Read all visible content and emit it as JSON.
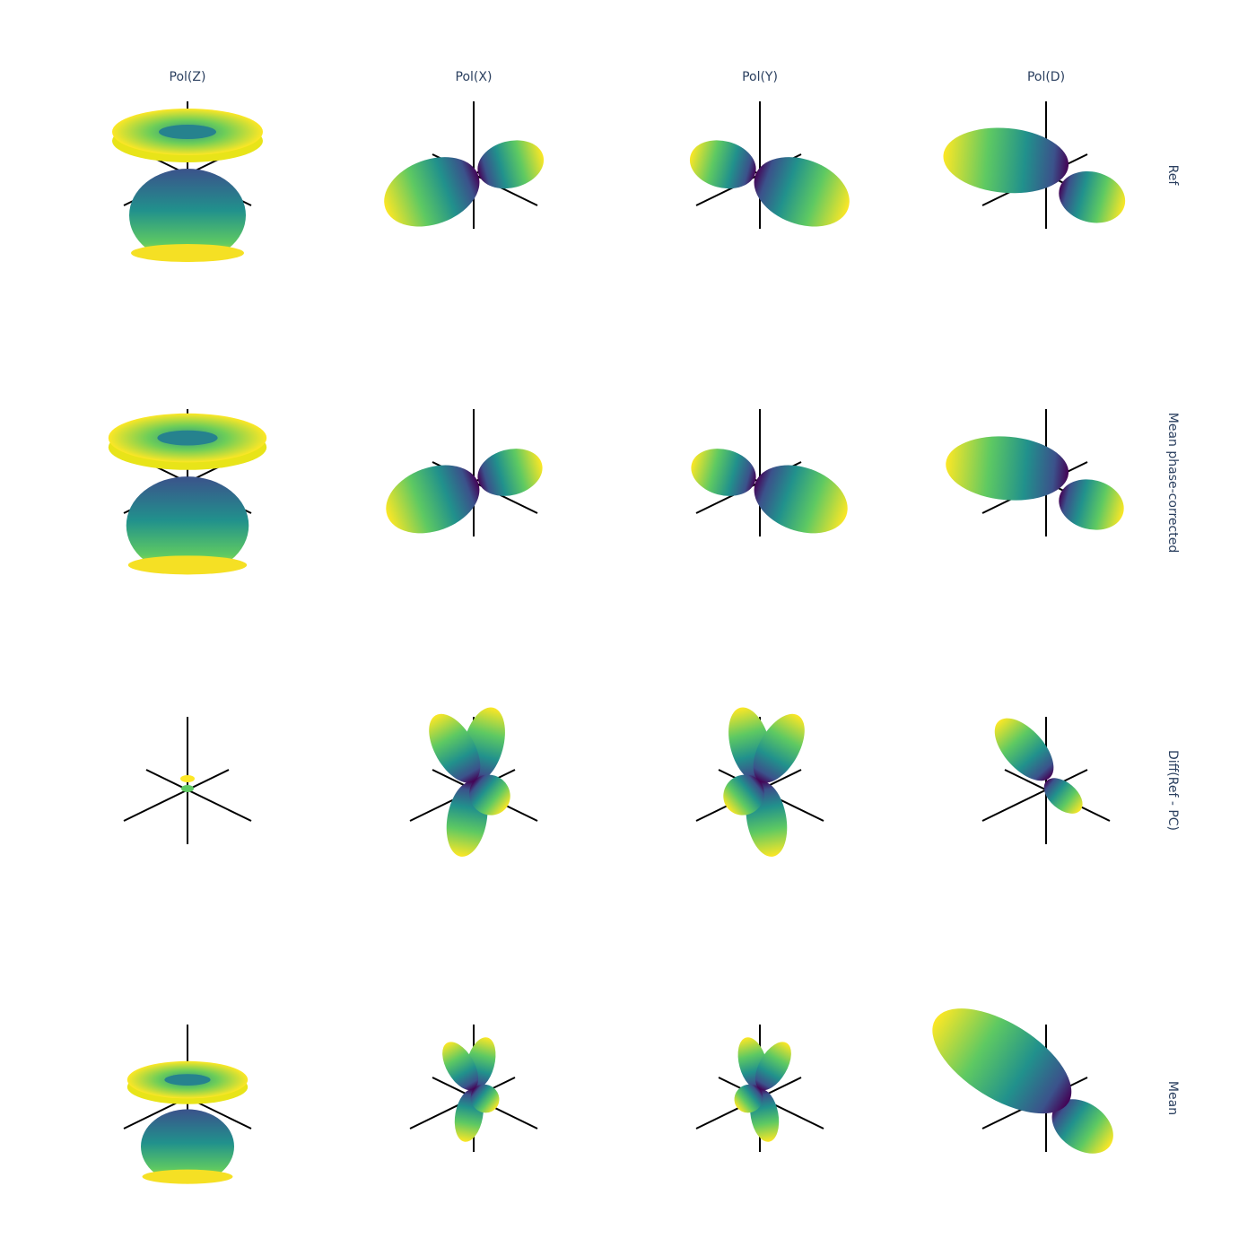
{
  "chart_data": {
    "type": "3d-surface-grid",
    "columns": [
      "Pol(Z)",
      "Pol(X)",
      "Pol(Y)",
      "Pol(D)"
    ],
    "rows": [
      "Ref",
      "Mean phase-corrected",
      "Diff(Ref - PC)",
      "Mean"
    ],
    "colorscale": "viridis",
    "axes_color": "#000000",
    "grid": false,
    "cells": [
      [
        {
          "shape": "torus-pz",
          "scale": 1.0
        },
        {
          "shape": "dipole-x",
          "scale": 1.0
        },
        {
          "shape": "dipole-y",
          "scale": 1.0
        },
        {
          "shape": "dipole-d",
          "scale": 1.0
        }
      ],
      [
        {
          "shape": "torus-pz",
          "scale": 1.05
        },
        {
          "shape": "dipole-x",
          "scale": 0.98
        },
        {
          "shape": "dipole-y",
          "scale": 0.98
        },
        {
          "shape": "dipole-d",
          "scale": 0.98
        }
      ],
      [
        {
          "shape": "tiny-pz",
          "scale": 0.1
        },
        {
          "shape": "clover-x",
          "scale": 1.0
        },
        {
          "shape": "clover-y",
          "scale": 1.0
        },
        {
          "shape": "clover-d",
          "scale": 0.6
        }
      ],
      [
        {
          "shape": "torus-pz",
          "scale": 0.8
        },
        {
          "shape": "clover-x",
          "scale": 0.7
        },
        {
          "shape": "clover-y",
          "scale": 0.7
        },
        {
          "shape": "dipole-d-large",
          "scale": 1.2
        }
      ]
    ]
  }
}
